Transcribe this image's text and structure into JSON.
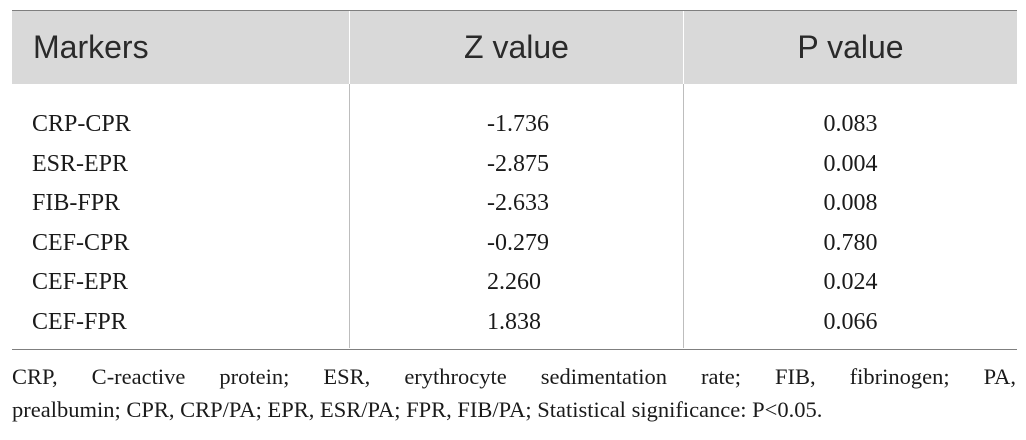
{
  "table": {
    "headers": [
      "Markers",
      "Z value",
      "P value"
    ],
    "rows": [
      {
        "marker": "CRP-CPR",
        "z": "-1.736",
        "p": "0.083"
      },
      {
        "marker": "ESR-EPR",
        "z": "-2.875",
        "p": "0.004"
      },
      {
        "marker": "FIB-FPR",
        "z": "-2.633",
        "p": "0.008"
      },
      {
        "marker": "CEF-CPR",
        "z": "-0.279",
        "p": "0.780"
      },
      {
        "marker": "CEF-EPR",
        "z": "2.260",
        "p": "0.024"
      },
      {
        "marker": "CEF-FPR",
        "z": "1.838",
        "p": "0.066"
      }
    ]
  },
  "footnote": {
    "line1": "CRP, C-reactive protein; ESR, erythrocyte sedimentation rate; FIB, fibrinogen; PA,",
    "line2": "prealbumin; CPR, CRP/PA; EPR, ESR/PA; FPR, FIB/PA; Statistical significance: P<0.05."
  }
}
